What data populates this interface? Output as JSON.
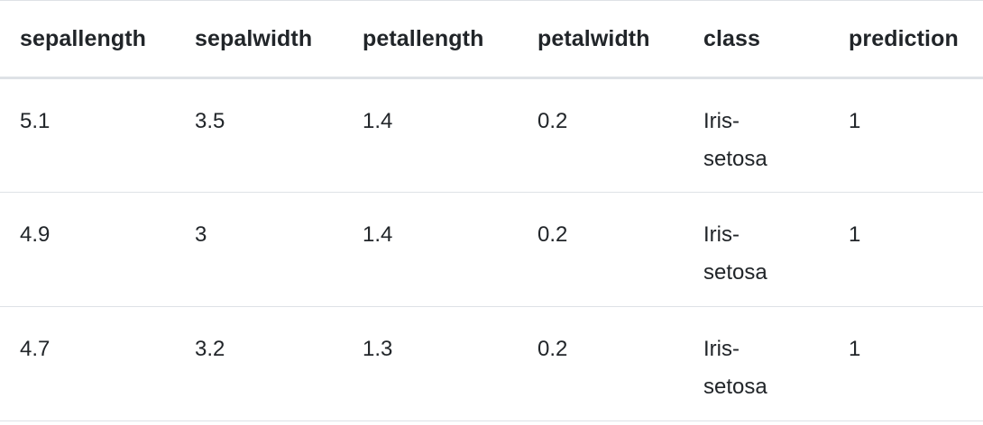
{
  "table": {
    "columns": [
      "sepallength",
      "sepalwidth",
      "petallength",
      "petalwidth",
      "class",
      "prediction"
    ],
    "rows": [
      {
        "sepallength": "5.1",
        "sepalwidth": "3.5",
        "petallength": "1.4",
        "petalwidth": "0.2",
        "class": "Iris-setosa",
        "prediction": "1"
      },
      {
        "sepallength": "4.9",
        "sepalwidth": "3",
        "petallength": "1.4",
        "petalwidth": "0.2",
        "class": "Iris-setosa",
        "prediction": "1"
      },
      {
        "sepallength": "4.7",
        "sepalwidth": "3.2",
        "petallength": "1.3",
        "petalwidth": "0.2",
        "class": "Iris-setosa",
        "prediction": "1"
      }
    ]
  }
}
